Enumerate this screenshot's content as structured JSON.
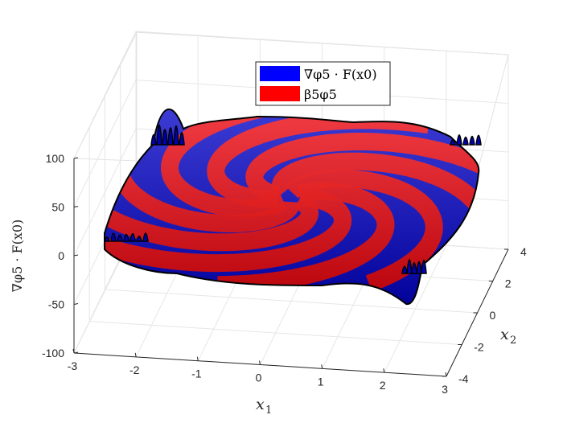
{
  "chart_data": {
    "type": "surface3d",
    "title": "",
    "xlabel": "x_1",
    "ylabel": "x_2",
    "zlabel": "∇φ5 · F(x0)",
    "xlim": [
      -3,
      3
    ],
    "ylim": [
      -4,
      4
    ],
    "zlim": [
      -100,
      100
    ],
    "x_ticks": [
      -3,
      -2,
      -1,
      0,
      1,
      2,
      3
    ],
    "y_ticks": [
      -4,
      -2,
      0,
      2,
      4
    ],
    "z_ticks": [
      -100,
      -50,
      0,
      50,
      100
    ],
    "grid": true,
    "legend_position": "top-center",
    "series": [
      {
        "name": "∇φ5 · F(x0)",
        "color": "#0000ff"
      },
      {
        "name": "β5φ5",
        "color": "#ff0000"
      }
    ]
  }
}
